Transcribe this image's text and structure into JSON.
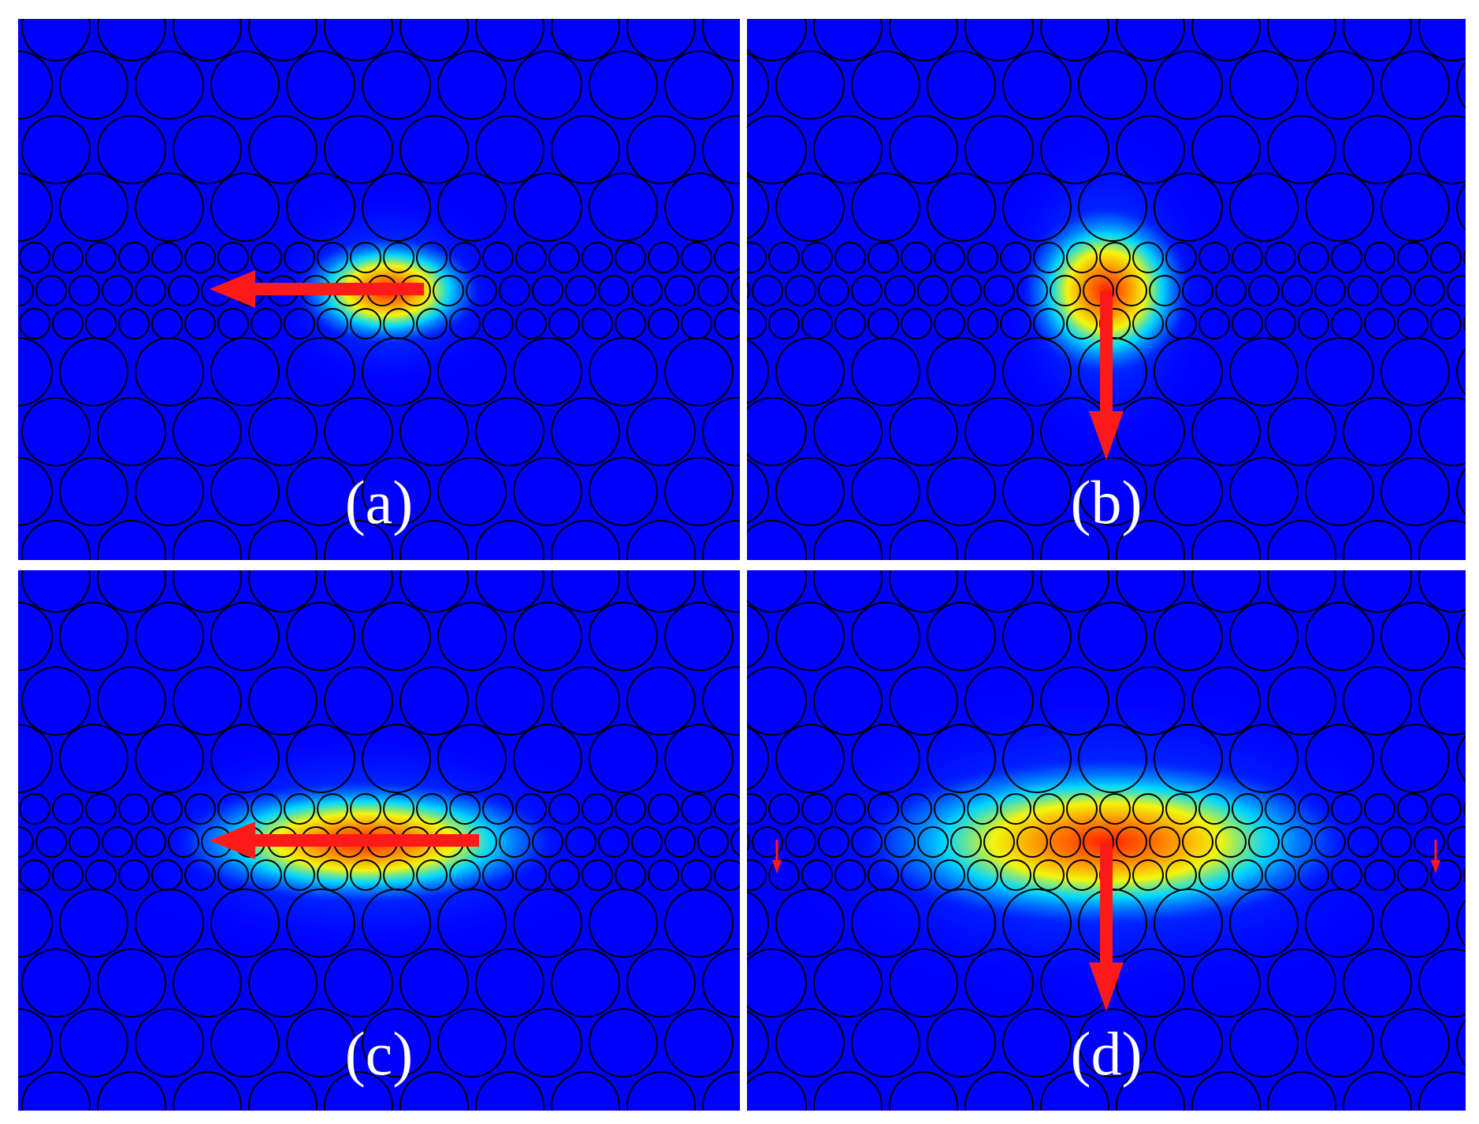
{
  "colors": {
    "background": "#0000ff",
    "arrow": "#ff1a1a",
    "outline": "#000000",
    "label": "#ffffff",
    "frame": "#ffffff"
  },
  "panels": [
    {
      "id": "a",
      "label": "(a)",
      "field": "confined-along-waveguide",
      "arrow": "left"
    },
    {
      "id": "b",
      "label": "(b)",
      "field": "compact-vertical-emission",
      "arrow": "down"
    },
    {
      "id": "c",
      "label": "(c)",
      "field": "extended-along-waveguide",
      "arrow": "left"
    },
    {
      "id": "d",
      "label": "(d)",
      "field": "extended-vertical-emission",
      "arrow": "down-with-side-arrows"
    }
  ]
}
